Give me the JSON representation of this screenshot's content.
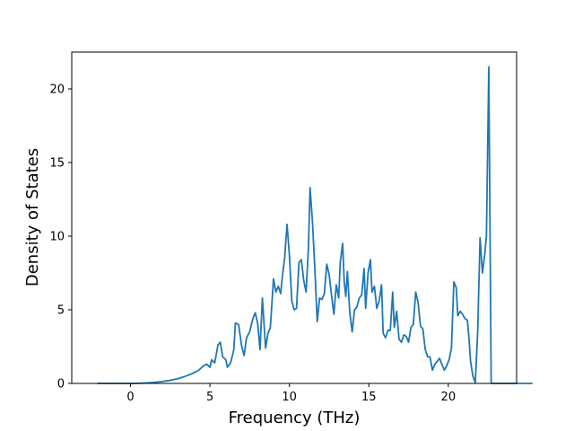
{
  "chart_data": {
    "type": "line",
    "title": "",
    "xlabel": "Frequency (THz)",
    "ylabel": "Density of States",
    "xlim": [
      -3.7,
      24.3
    ],
    "ylim": [
      0,
      22.5
    ],
    "xticks": [
      0,
      5,
      10,
      15,
      20
    ],
    "yticks": [
      0,
      5,
      10,
      15,
      20
    ],
    "grid": false,
    "series": [
      {
        "color": "#1f77b4",
        "points": [
          [
            -2.1,
            0
          ],
          [
            -1.0,
            0
          ],
          [
            0.0,
            0
          ],
          [
            0.5,
            0.01
          ],
          [
            1.0,
            0.03
          ],
          [
            1.5,
            0.07
          ],
          [
            2.0,
            0.13
          ],
          [
            2.5,
            0.21
          ],
          [
            3.0,
            0.33
          ],
          [
            3.5,
            0.5
          ],
          [
            4.0,
            0.72
          ],
          [
            4.3,
            0.9
          ],
          [
            4.6,
            1.2
          ],
          [
            4.8,
            1.3
          ],
          [
            5.0,
            1.1
          ],
          [
            5.1,
            1.6
          ],
          [
            5.3,
            1.4
          ],
          [
            5.5,
            2.6
          ],
          [
            5.65,
            2.8
          ],
          [
            5.8,
            1.8
          ],
          [
            6.0,
            1.6
          ],
          [
            6.1,
            1.1
          ],
          [
            6.3,
            1.4
          ],
          [
            6.5,
            2.3
          ],
          [
            6.6,
            4.1
          ],
          [
            6.8,
            4.0
          ],
          [
            7.0,
            2.5
          ],
          [
            7.15,
            1.9
          ],
          [
            7.3,
            3.1
          ],
          [
            7.5,
            3.5
          ],
          [
            7.7,
            4.4
          ],
          [
            7.85,
            4.8
          ],
          [
            8.0,
            4.1
          ],
          [
            8.15,
            2.3
          ],
          [
            8.3,
            5.8
          ],
          [
            8.5,
            2.4
          ],
          [
            8.65,
            3.4
          ],
          [
            8.8,
            3.8
          ],
          [
            9.0,
            7.1
          ],
          [
            9.15,
            6.2
          ],
          [
            9.3,
            6.6
          ],
          [
            9.45,
            6.1
          ],
          [
            9.55,
            7.2
          ],
          [
            9.7,
            8.5
          ],
          [
            9.85,
            10.8
          ],
          [
            10.0,
            8.7
          ],
          [
            10.15,
            5.6
          ],
          [
            10.3,
            5.0
          ],
          [
            10.45,
            5.1
          ],
          [
            10.6,
            8.2
          ],
          [
            10.75,
            8.4
          ],
          [
            10.9,
            7.0
          ],
          [
            11.05,
            6.2
          ],
          [
            11.2,
            9.3
          ],
          [
            11.3,
            13.3
          ],
          [
            11.45,
            11.0
          ],
          [
            11.6,
            7.8
          ],
          [
            11.75,
            4.2
          ],
          [
            11.9,
            5.8
          ],
          [
            12.05,
            5.7
          ],
          [
            12.2,
            6.1
          ],
          [
            12.35,
            8.1
          ],
          [
            12.5,
            7.4
          ],
          [
            12.65,
            6.0
          ],
          [
            12.8,
            4.7
          ],
          [
            12.95,
            6.7
          ],
          [
            13.1,
            5.8
          ],
          [
            13.2,
            8.2
          ],
          [
            13.35,
            9.5
          ],
          [
            13.45,
            6.9
          ],
          [
            13.55,
            5.9
          ],
          [
            13.65,
            7.6
          ],
          [
            13.8,
            4.8
          ],
          [
            13.95,
            3.5
          ],
          [
            14.1,
            5.0
          ],
          [
            14.25,
            5.2
          ],
          [
            14.4,
            5.8
          ],
          [
            14.55,
            6.0
          ],
          [
            14.7,
            7.8
          ],
          [
            14.8,
            5.1
          ],
          [
            14.95,
            7.5
          ],
          [
            15.1,
            8.4
          ],
          [
            15.2,
            6.2
          ],
          [
            15.35,
            6.6
          ],
          [
            15.5,
            5.1
          ],
          [
            15.65,
            5.6
          ],
          [
            15.8,
            6.7
          ],
          [
            15.9,
            3.4
          ],
          [
            16.05,
            3.1
          ],
          [
            16.2,
            3.6
          ],
          [
            16.35,
            3.6
          ],
          [
            16.5,
            6.2
          ],
          [
            16.6,
            3.8
          ],
          [
            16.75,
            4.9
          ],
          [
            16.9,
            3.0
          ],
          [
            17.05,
            2.8
          ],
          [
            17.2,
            3.3
          ],
          [
            17.35,
            3.2
          ],
          [
            17.5,
            2.8
          ],
          [
            17.65,
            3.8
          ],
          [
            17.8,
            4.0
          ],
          [
            17.95,
            6.2
          ],
          [
            18.1,
            5.5
          ],
          [
            18.25,
            3.9
          ],
          [
            18.4,
            3.7
          ],
          [
            18.55,
            2.3
          ],
          [
            18.7,
            1.8
          ],
          [
            18.85,
            1.8
          ],
          [
            19.0,
            0.9
          ],
          [
            19.15,
            1.3
          ],
          [
            19.3,
            1.5
          ],
          [
            19.45,
            1.7
          ],
          [
            19.6,
            1.3
          ],
          [
            19.75,
            0.9
          ],
          [
            19.9,
            1.2
          ],
          [
            20.05,
            1.6
          ],
          [
            20.2,
            2.4
          ],
          [
            20.35,
            6.9
          ],
          [
            20.5,
            6.5
          ],
          [
            20.6,
            4.6
          ],
          [
            20.75,
            4.9
          ],
          [
            20.9,
            4.7
          ],
          [
            21.05,
            4.4
          ],
          [
            21.2,
            4.3
          ],
          [
            21.3,
            3.1
          ],
          [
            21.4,
            1.5
          ],
          [
            21.55,
            0.5
          ],
          [
            21.7,
            0.05
          ],
          [
            21.85,
            3.5
          ],
          [
            22.0,
            9.9
          ],
          [
            22.15,
            7.5
          ],
          [
            22.3,
            8.8
          ],
          [
            22.4,
            10.0
          ],
          [
            22.55,
            21.5
          ],
          [
            22.7,
            0
          ],
          [
            22.9,
            0
          ],
          [
            24.0,
            0
          ],
          [
            25.3,
            0
          ]
        ]
      }
    ]
  }
}
